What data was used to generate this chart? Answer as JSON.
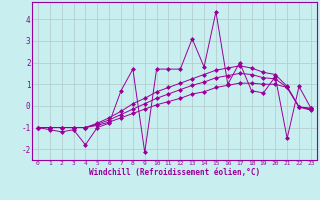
{
  "xlabel": "Windchill (Refroidissement éolien,°C)",
  "bg_color": "#c8eef0",
  "line_color": "#990099",
  "grid_color": "#b0c8c8",
  "xlim": [
    -0.5,
    23.5
  ],
  "ylim": [
    -2.5,
    4.8
  ],
  "yticks": [
    -2,
    -1,
    0,
    1,
    2,
    3,
    4
  ],
  "xticks": [
    0,
    1,
    2,
    3,
    4,
    5,
    6,
    7,
    8,
    9,
    10,
    11,
    12,
    13,
    14,
    15,
    16,
    17,
    18,
    19,
    20,
    21,
    22,
    23
  ],
  "series": [
    [
      -1.0,
      -1.1,
      -1.2,
      -1.1,
      -1.8,
      -1.0,
      -0.8,
      0.7,
      1.7,
      -2.15,
      1.7,
      1.7,
      1.7,
      3.1,
      1.8,
      4.35,
      1.0,
      2.0,
      0.7,
      0.6,
      1.35,
      -1.5,
      0.9,
      -0.1
    ],
    [
      -1.0,
      -1.0,
      -1.0,
      -1.0,
      -1.0,
      -0.9,
      -0.75,
      -0.55,
      -0.35,
      -0.15,
      0.05,
      0.2,
      0.35,
      0.55,
      0.65,
      0.85,
      0.95,
      1.05,
      1.05,
      1.0,
      1.0,
      0.85,
      -0.05,
      -0.1
    ],
    [
      -1.0,
      -1.0,
      -1.0,
      -1.0,
      -1.0,
      -0.85,
      -0.65,
      -0.4,
      -0.15,
      0.1,
      0.35,
      0.55,
      0.75,
      0.95,
      1.1,
      1.3,
      1.4,
      1.5,
      1.45,
      1.3,
      1.25,
      0.85,
      -0.05,
      -0.15
    ],
    [
      -1.0,
      -1.0,
      -1.0,
      -1.0,
      -1.0,
      -0.8,
      -0.55,
      -0.25,
      0.1,
      0.35,
      0.65,
      0.85,
      1.05,
      1.25,
      1.45,
      1.65,
      1.75,
      1.85,
      1.75,
      1.55,
      1.45,
      0.9,
      -0.05,
      -0.2
    ]
  ]
}
